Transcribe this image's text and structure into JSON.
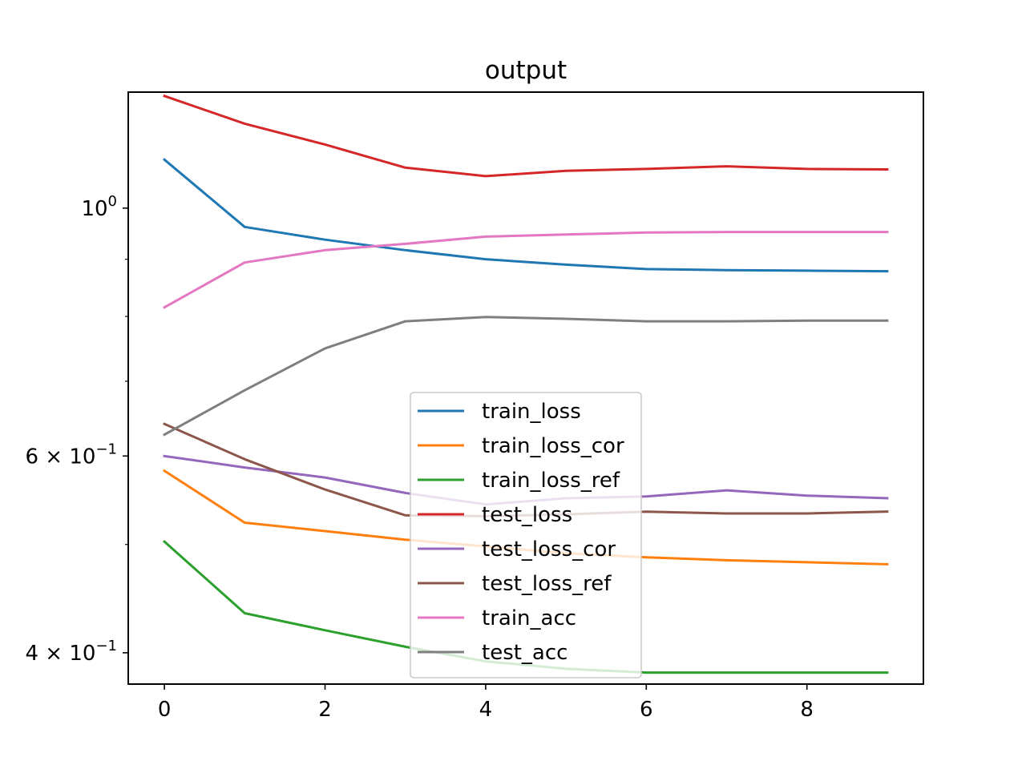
{
  "chart_data": {
    "type": "line",
    "title": "output",
    "xlabel": "",
    "ylabel": "",
    "yscale": "log",
    "xlim": [
      -0.45,
      9.45
    ],
    "ylim": [
      0.375,
      1.27
    ],
    "grid": false,
    "legend_position": "lower center",
    "x": [
      0,
      1,
      2,
      3,
      4,
      5,
      6,
      7,
      8,
      9
    ],
    "x_ticks": [
      {
        "value": 0,
        "label": "0"
      },
      {
        "value": 2,
        "label": "2"
      },
      {
        "value": 4,
        "label": "4"
      },
      {
        "value": 6,
        "label": "6"
      },
      {
        "value": 8,
        "label": "8"
      }
    ],
    "y_major_ticks": [
      {
        "value": 1.0,
        "mantissa": "",
        "base": "10",
        "exp": "0"
      },
      {
        "value": 0.6,
        "mantissa": "6 × ",
        "base": "10",
        "exp": "−1"
      },
      {
        "value": 0.4,
        "mantissa": "4 × ",
        "base": "10",
        "exp": "−1"
      }
    ],
    "y_minor_ticks": [
      0.5,
      0.7,
      0.8,
      0.9
    ],
    "series": [
      {
        "name": "train_loss",
        "color": "#1f77b4",
        "values": [
          1.105,
          0.962,
          0.937,
          0.917,
          0.9,
          0.89,
          0.882,
          0.88,
          0.879,
          0.878
        ]
      },
      {
        "name": "train_loss_cor",
        "color": "#ff7f0e",
        "values": [
          0.582,
          0.523,
          0.514,
          0.505,
          0.498,
          0.491,
          0.487,
          0.484,
          0.482,
          0.48
        ]
      },
      {
        "name": "train_loss_ref",
        "color": "#2ca02c",
        "values": [
          0.503,
          0.434,
          0.419,
          0.405,
          0.393,
          0.387,
          0.384,
          0.384,
          0.384,
          0.384
        ]
      },
      {
        "name": "test_loss",
        "color": "#d62728",
        "values": [
          1.26,
          1.19,
          1.14,
          1.087,
          1.068,
          1.08,
          1.084,
          1.09,
          1.084,
          1.083
        ]
      },
      {
        "name": "test_loss_cor",
        "color": "#9467bd",
        "values": [
          0.6,
          0.586,
          0.574,
          0.556,
          0.543,
          0.55,
          0.552,
          0.559,
          0.553,
          0.55
        ]
      },
      {
        "name": "test_loss_ref",
        "color": "#8c564b",
        "values": [
          0.641,
          0.596,
          0.56,
          0.531,
          0.53,
          0.532,
          0.535,
          0.533,
          0.533,
          0.535
        ]
      },
      {
        "name": "train_acc",
        "color": "#e377c2",
        "values": [
          0.815,
          0.894,
          0.917,
          0.929,
          0.943,
          0.947,
          0.951,
          0.952,
          0.952,
          0.952
        ]
      },
      {
        "name": "test_acc",
        "color": "#7f7f7f",
        "values": [
          0.627,
          0.687,
          0.749,
          0.792,
          0.799,
          0.796,
          0.792,
          0.792,
          0.793,
          0.793
        ]
      }
    ]
  }
}
